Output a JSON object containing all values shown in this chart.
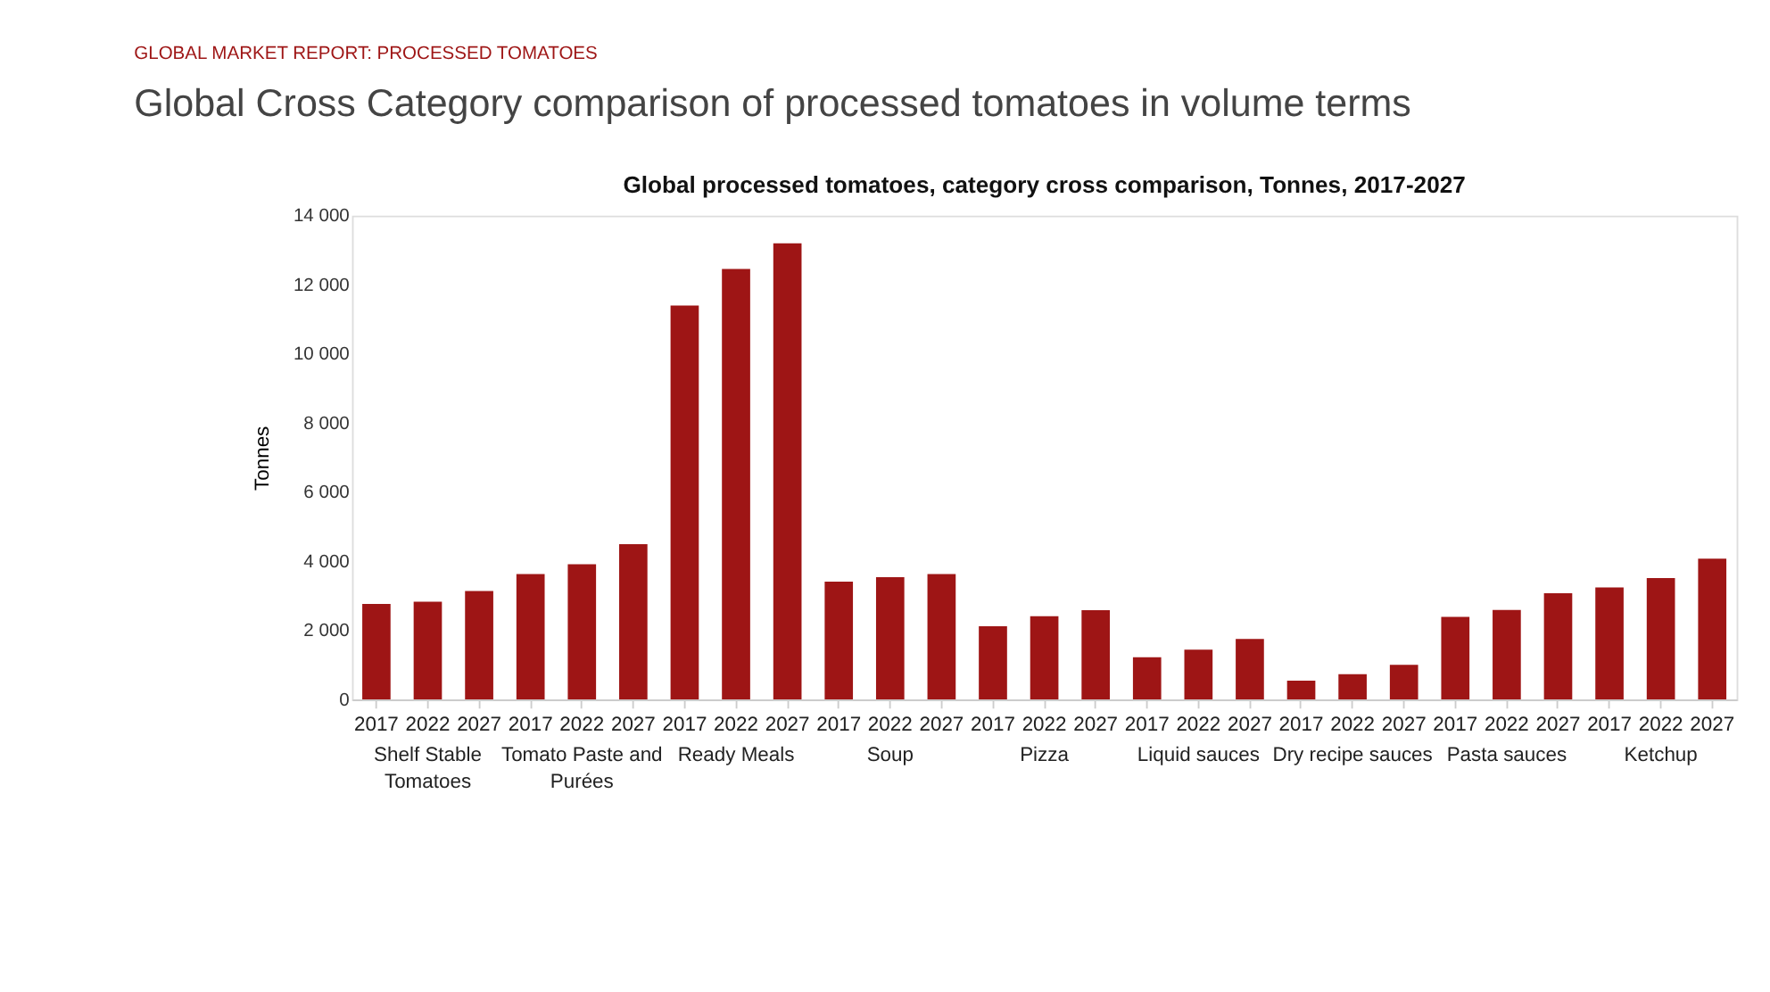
{
  "chart_data": {
    "type": "bar",
    "title": "Global processed tomatoes, category cross comparison, Tonnes, 2017-2027",
    "subtitle": "Global Cross Category comparison of processed tomatoes in volume terms",
    "annotations": [
      "GLOBAL MARKET REPORT: PROCESSED TOMATOES",
      "Shelf Stable Tomatoes",
      "Tomato Paste and Purées",
      "Ready Meals",
      "Soup",
      "Pizza",
      "Liquid sauces",
      "Dry recipe sauces",
      "Pasta sauces",
      "Ketchup"
    ],
    "ylabel": "Tonnes",
    "categories": [
      "2017",
      "2022",
      "2027",
      "2017",
      "2022",
      "2027",
      "2017",
      "2022",
      "2027",
      "2017",
      "2022",
      "2027",
      "2017",
      "2022",
      "2027",
      "2017",
      "2022",
      "2027",
      "2017",
      "2022",
      "2027",
      "2017",
      "2022",
      "2027",
      "2017",
      "2022",
      "2027"
    ],
    "values": [
      2760,
      2830,
      3140,
      3630,
      3910,
      4490,
      11400,
      12460,
      13200,
      3410,
      3540,
      3630,
      2120,
      2410,
      2580,
      1220,
      1440,
      1750,
      540,
      730,
      1000,
      2390,
      2590,
      3070,
      3240,
      3510,
      4070
    ],
    "color": "#9e1515",
    "ylim": [
      0,
      14000
    ],
    "yticks": [
      0,
      {
        "value": 2000,
        "label": "2 000"
      },
      {
        "value": 4000,
        "label": "4 000"
      },
      {
        "value": 6000,
        "label": "6 000"
      },
      {
        "value": 8000,
        "label": "8 000"
      },
      {
        "value": 10000,
        "label": "10 000"
      },
      {
        "value": 12000,
        "label": "12 000"
      },
      {
        "value": 14000,
        "label": "14 000"
      }
    ],
    "grid": false
  }
}
